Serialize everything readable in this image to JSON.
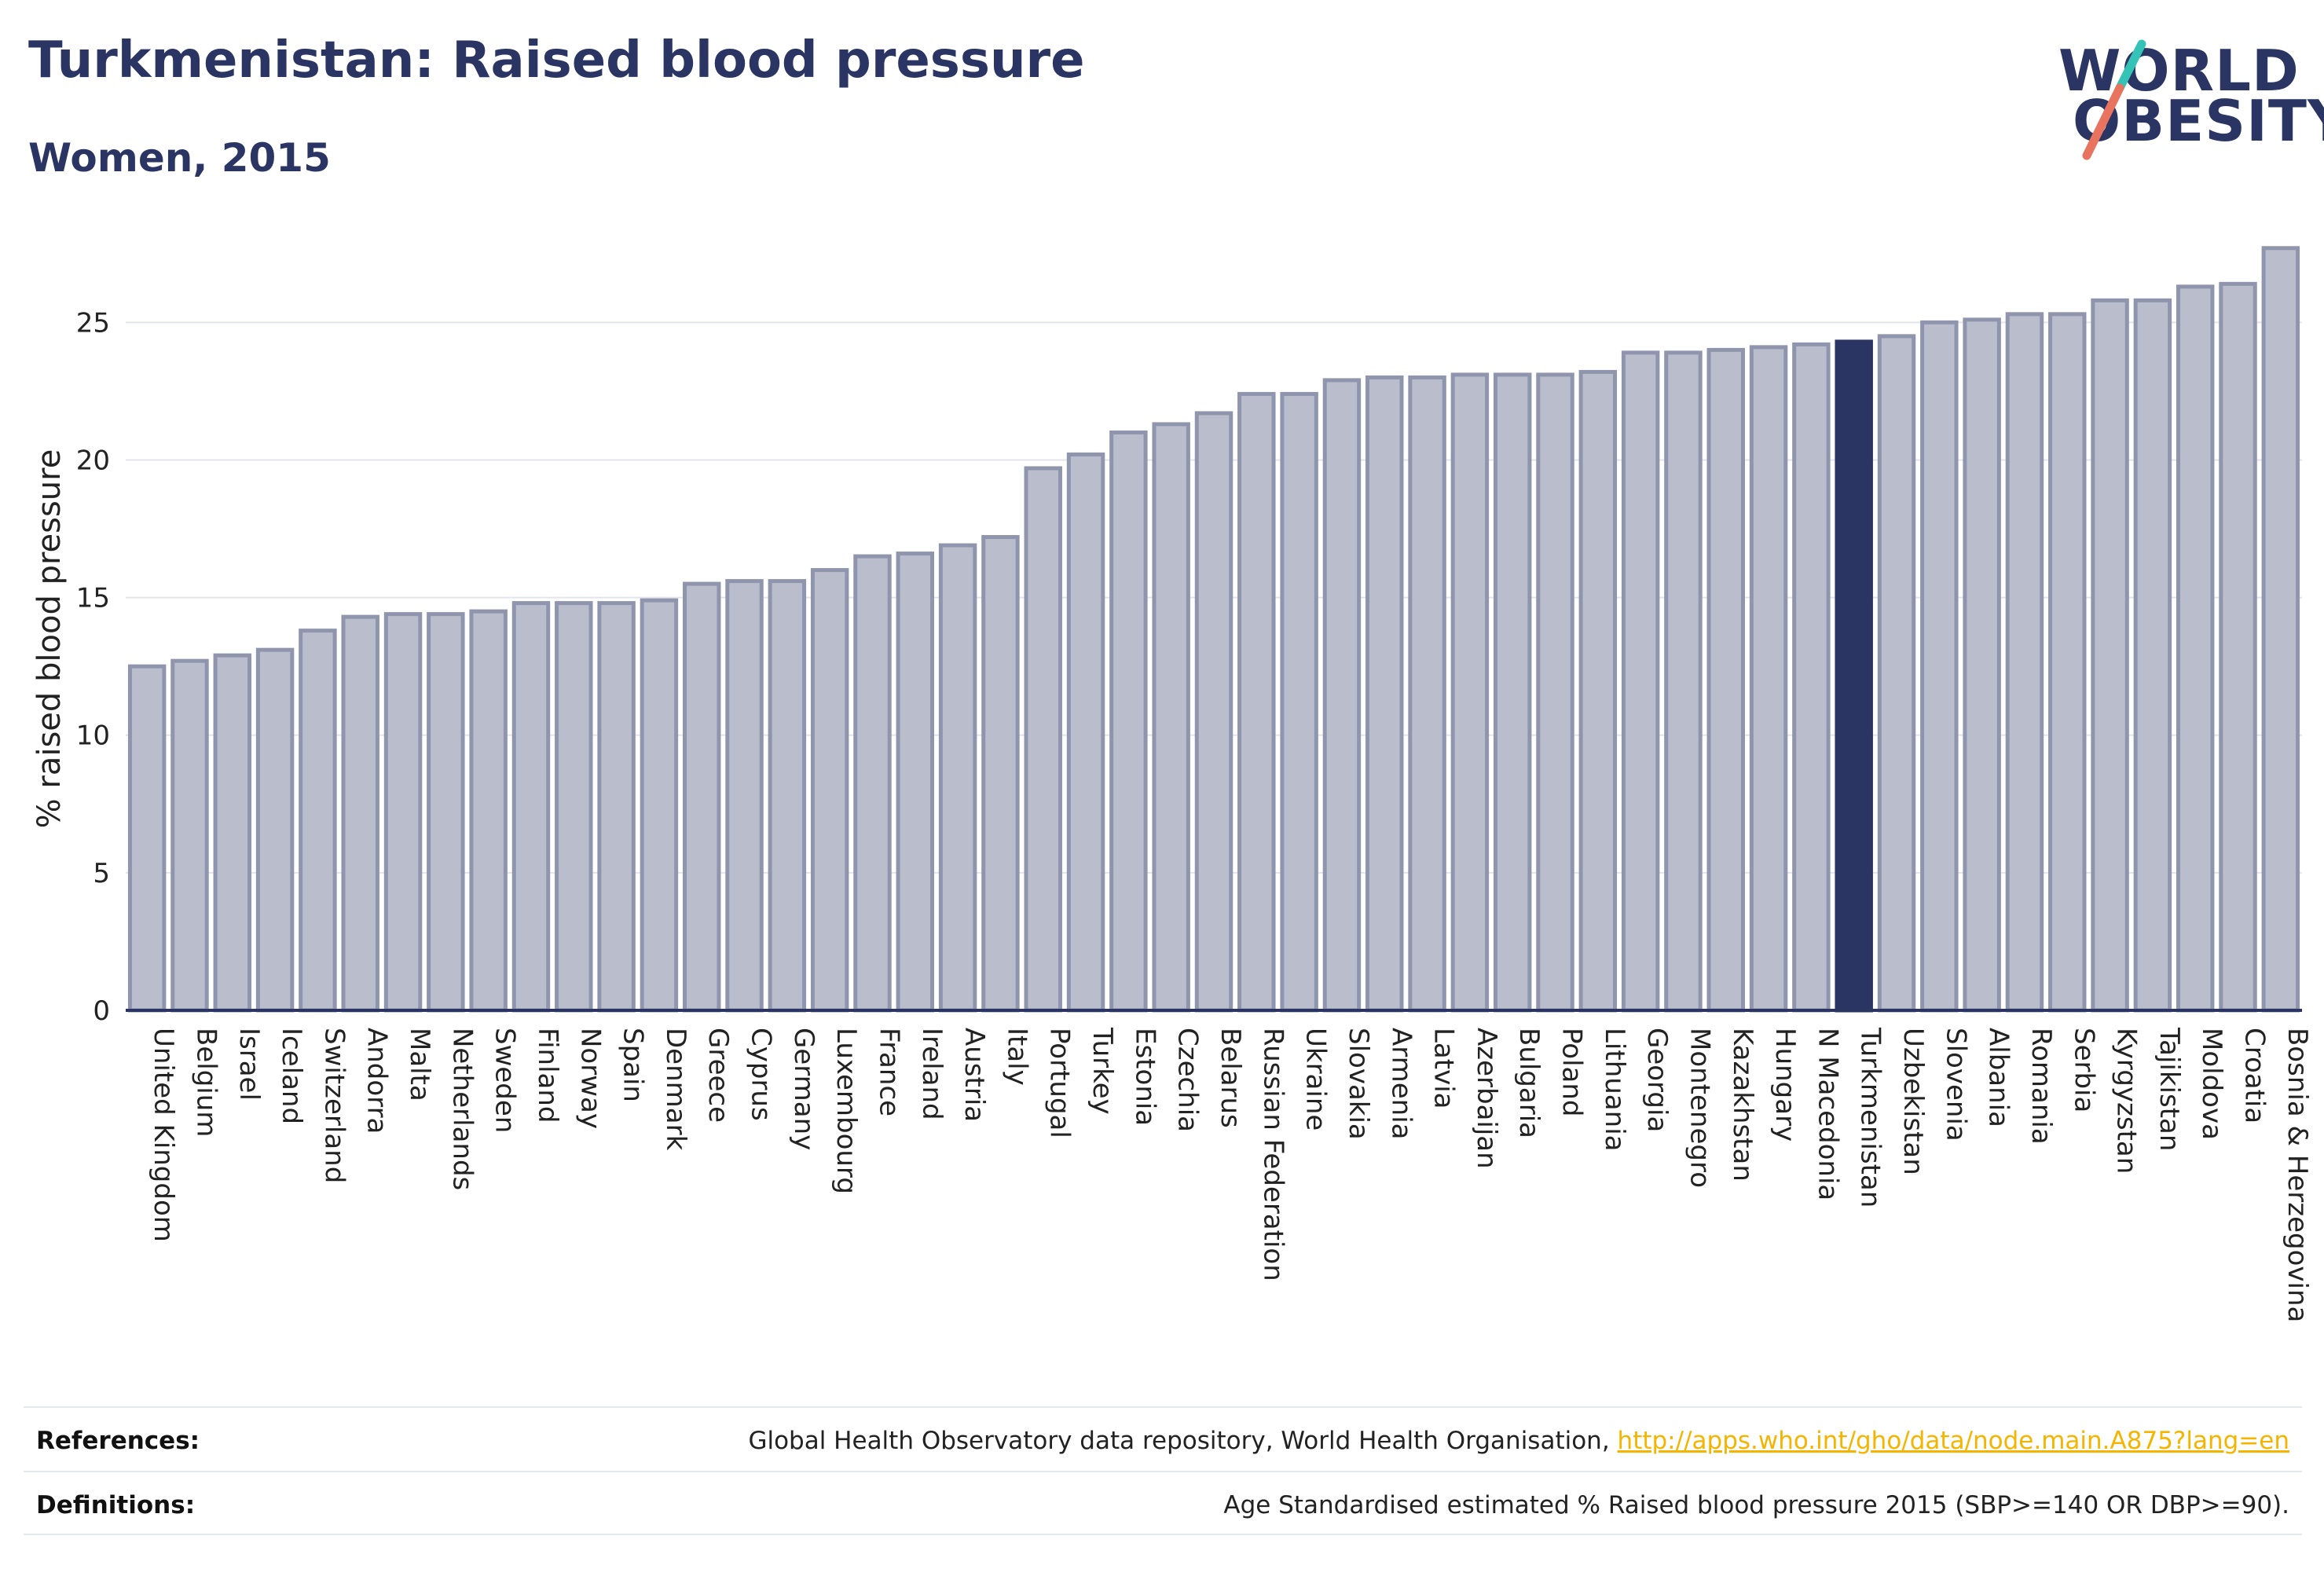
{
  "header": {
    "title": "Turkmenistan: Raised blood pressure",
    "subtitle": "Women, 2015"
  },
  "logo": {
    "line1": "WORLD",
    "line2": "OBESITY",
    "colors": {
      "text": "#2b3563",
      "slash_top": "#35c3b7",
      "slash_bottom": "#e8735e"
    }
  },
  "colors": {
    "bar_fill": "#b9bdcc",
    "bar_stroke": "#8f95ad",
    "highlight_fill": "#2b3563",
    "axis": "#2b3563",
    "grid": "#e3e5ec"
  },
  "chart_data": {
    "type": "bar",
    "ylabel": "% raised blood pressure",
    "xlabel": "",
    "ylim": [
      0,
      27.7
    ],
    "yticks": [
      0,
      5,
      10,
      15,
      20,
      25
    ],
    "grid": true,
    "highlight": "Turkmenistan",
    "categories": [
      "United Kingdom",
      "Belgium",
      "Israel",
      "Iceland",
      "Switzerland",
      "Andorra",
      "Malta",
      "Netherlands",
      "Sweden",
      "Finland",
      "Norway",
      "Spain",
      "Denmark",
      "Greece",
      "Cyprus",
      "Germany",
      "Luxembourg",
      "France",
      "Ireland",
      "Austria",
      "Italy",
      "Portugal",
      "Turkey",
      "Estonia",
      "Czechia",
      "Belarus",
      "Russian Federation",
      "Ukraine",
      "Slovakia",
      "Armenia",
      "Latvia",
      "Azerbaijan",
      "Bulgaria",
      "Poland",
      "Lithuania",
      "Georgia",
      "Montenegro",
      "Kazakhstan",
      "Hungary",
      "N Macedonia",
      "Turkmenistan",
      "Uzbekistan",
      "Slovenia",
      "Albania",
      "Romania",
      "Serbia",
      "Kyrgyzstan",
      "Tajikistan",
      "Moldova",
      "Croatia",
      "Bosnia & Herzegovina"
    ],
    "values": [
      12.5,
      12.7,
      12.9,
      13.1,
      13.8,
      14.3,
      14.4,
      14.4,
      14.5,
      14.8,
      14.8,
      14.8,
      14.9,
      15.5,
      15.6,
      15.6,
      16.0,
      16.5,
      16.6,
      16.9,
      17.2,
      19.7,
      20.2,
      21.0,
      21.3,
      21.7,
      22.4,
      22.4,
      22.9,
      23.0,
      23.0,
      23.1,
      23.1,
      23.1,
      23.2,
      23.9,
      23.9,
      24.0,
      24.1,
      24.2,
      24.3,
      24.5,
      25.0,
      25.1,
      25.3,
      25.3,
      25.8,
      25.8,
      26.3,
      26.4,
      27.7
    ]
  },
  "footer": {
    "references_label": "References:",
    "references_text": "Global Health Observatory data repository, World Health Organisation,",
    "references_link": "http://apps.who.int/gho/data/node.main.A875?lang=en",
    "definitions_label": "Definitions:",
    "definitions_text": "Age Standardised estimated % Raised blood pressure 2015 (SBP>=140 OR DBP>=90)."
  }
}
